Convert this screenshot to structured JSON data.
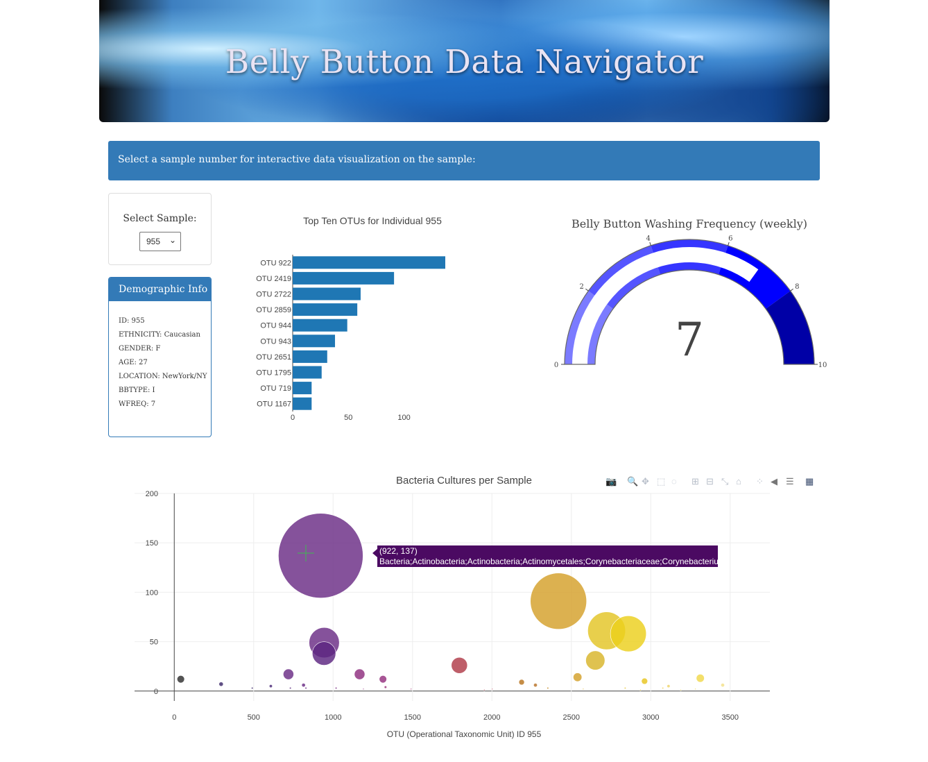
{
  "header": {
    "title": "Belly Button Data Navigator"
  },
  "prompt": {
    "text": "Select a sample number for interactive data visualization on the sample:"
  },
  "select": {
    "label": "Select Sample:",
    "value": "955"
  },
  "demographics": {
    "title": "Demographic Info",
    "items": [
      "ID: 955",
      "ETHNICITY: Caucasian",
      "GENDER: F",
      "AGE: 27",
      "LOCATION: NewYork/NY",
      "BBTYPE: I",
      "WFREQ: 7"
    ]
  },
  "chart_data": [
    {
      "type": "bar",
      "orientation": "horizontal",
      "title": "Top Ten OTUs for Individual 955",
      "categories": [
        "OTU 922",
        "OTU 2419",
        "OTU 2722",
        "OTU 2859",
        "OTU 944",
        "OTU 943",
        "OTU 2651",
        "OTU 1795",
        "OTU 719",
        "OTU 1167"
      ],
      "values": [
        137,
        91,
        61,
        58,
        49,
        38,
        31,
        26,
        17,
        17
      ],
      "xlim": [
        0,
        137
      ],
      "xticks": [
        0,
        50,
        100
      ],
      "color": "#1f77b4"
    },
    {
      "type": "gauge",
      "title": "Belly Button Washing Frequency (weekly)",
      "value": 7,
      "range": [
        0,
        10
      ],
      "ticks": [
        0,
        2,
        4,
        6,
        8,
        10
      ],
      "bar_color": "#ffffff",
      "steps": [
        {
          "range": [
            0,
            2
          ],
          "color": "#7b7bff"
        },
        {
          "range": [
            2,
            4
          ],
          "color": "#5555ff"
        },
        {
          "range": [
            4,
            6
          ],
          "color": "#3535ff"
        },
        {
          "range": [
            6,
            8
          ],
          "color": "#0000ff"
        },
        {
          "range": [
            8,
            10
          ],
          "color": "#0000a6"
        }
      ]
    },
    {
      "type": "scatter",
      "mode": "bubble",
      "title": "Bacteria Cultures per Sample",
      "xlabel": "OTU (Operational Taxonomic Unit) ID 955",
      "ylabel": "",
      "xlim": [
        -250,
        3750
      ],
      "ylim": [
        -10,
        200
      ],
      "xticks": [
        0,
        500,
        1000,
        1500,
        2000,
        2500,
        3000,
        3500
      ],
      "yticks": [
        0,
        50,
        100,
        150,
        200
      ],
      "grid": true,
      "points": [
        {
          "x": 922,
          "y": 137,
          "color": "#6a2c85"
        },
        {
          "x": 944,
          "y": 49,
          "color": "#6a2c85"
        },
        {
          "x": 943,
          "y": 38,
          "color": "#5c2580"
        },
        {
          "x": 2419,
          "y": 91,
          "color": "#d4a02a"
        },
        {
          "x": 2722,
          "y": 61,
          "color": "#e3c424"
        },
        {
          "x": 2859,
          "y": 58,
          "color": "#ecd01c"
        },
        {
          "x": 2651,
          "y": 31,
          "color": "#d8b52a"
        },
        {
          "x": 1795,
          "y": 26,
          "color": "#b03a48"
        },
        {
          "x": 719,
          "y": 17,
          "color": "#6a2c85"
        },
        {
          "x": 1167,
          "y": 17,
          "color": "#8e2d7e"
        },
        {
          "x": 41,
          "y": 12,
          "color": "#2d2d2d"
        },
        {
          "x": 1314,
          "y": 12,
          "color": "#94307e"
        },
        {
          "x": 2539,
          "y": 14,
          "color": "#d3a02a"
        },
        {
          "x": 3312,
          "y": 13,
          "color": "#f0d84a"
        },
        {
          "x": 2961,
          "y": 10,
          "color": "#e8c51e"
        },
        {
          "x": 2187,
          "y": 9,
          "color": "#b8741e"
        },
        {
          "x": 295,
          "y": 7,
          "color": "#3d2a6a"
        },
        {
          "x": 2274,
          "y": 6,
          "color": "#b87328"
        },
        {
          "x": 814,
          "y": 6,
          "color": "#6a2c85"
        },
        {
          "x": 608,
          "y": 5,
          "color": "#4a2a78"
        },
        {
          "x": 3112,
          "y": 5,
          "color": "#efd46a"
        },
        {
          "x": 3453,
          "y": 6,
          "color": "#f3e08a"
        },
        {
          "x": 1330,
          "y": 4,
          "color": "#9a3078"
        },
        {
          "x": 829,
          "y": 3,
          "color": "#6a2c85"
        },
        {
          "x": 491,
          "y": 3,
          "color": "#3d2a6a"
        },
        {
          "x": 731,
          "y": 3,
          "color": "#5a2a7e"
        },
        {
          "x": 1019,
          "y": 3,
          "color": "#7a2c82"
        },
        {
          "x": 2352,
          "y": 3,
          "color": "#c89030"
        },
        {
          "x": 2839,
          "y": 3,
          "color": "#e8cc4a"
        },
        {
          "x": 3076,
          "y": 3,
          "color": "#efd46a"
        },
        {
          "x": 1491,
          "y": 2,
          "color": "#a03070"
        },
        {
          "x": 1191,
          "y": 2,
          "color": "#8e2d7e"
        },
        {
          "x": 2002,
          "y": 2,
          "color": "#b8586a"
        },
        {
          "x": 2575,
          "y": 2,
          "color": "#d9b240"
        },
        {
          "x": 3281,
          "y": 2,
          "color": "#f0d84a"
        },
        {
          "x": 1952,
          "y": 1,
          "color": "#b44a5a"
        },
        {
          "x": 2935,
          "y": 1,
          "color": "#e9cd3a"
        },
        {
          "x": 3189,
          "y": 1,
          "color": "#f0d860"
        }
      ],
      "hover": {
        "coords": "(922, 137)",
        "label": "Bacteria;Actinobacteria;Actinobacteria;Actinomycetales;Corynebacteriaceae;Corynebacterium",
        "color": "#4b0a62"
      },
      "modebar_icons": [
        "camera-icon",
        "zoom-icon",
        "pan-icon",
        "box-select-icon",
        "lasso-icon",
        "zoom-in-icon",
        "zoom-out-icon",
        "autoscale-icon",
        "home-icon",
        "spike-lines-icon",
        "hover-closest-icon",
        "hover-compare-icon",
        "plotly-logo-icon"
      ]
    }
  ]
}
